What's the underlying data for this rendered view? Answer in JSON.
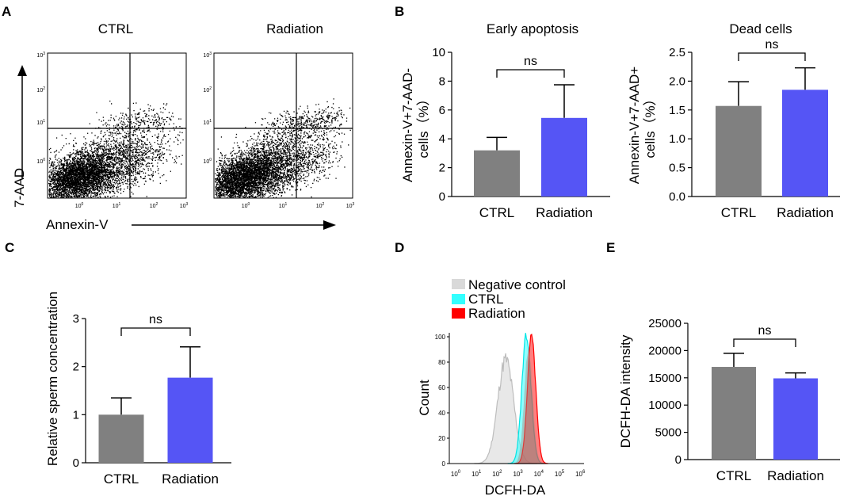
{
  "panels": {
    "A": "A",
    "B": "B",
    "C": "C",
    "D": "D",
    "E": "E"
  },
  "colors": {
    "ctrl": "#808080",
    "radiation": "#5555f5",
    "negative_control": "#d9d9d9",
    "ctrl_hist": "#33ffff",
    "radiation_hist": "#ff0000"
  },
  "chart_data": [
    {
      "panel": "A",
      "type": "scatter",
      "title_left": "CTRL",
      "title_right": "Radiation",
      "xlabel": "Annexin-V",
      "ylabel": "7-AAD",
      "x_ticks": [
        "10",
        "10",
        "10",
        "10"
      ],
      "x_tick_exponents": [
        "0",
        "1",
        "2",
        "3"
      ],
      "y_ticks": [
        "10",
        "10",
        "10",
        "10"
      ],
      "y_tick_exponents": [
        "0",
        "1",
        "2",
        "3"
      ],
      "quadrant_gate": {
        "x": 20,
        "y": 8
      }
    },
    {
      "panel": "B-left",
      "type": "bar",
      "title": "Early apoptosis",
      "ylabel_line1": "Annexin-V+7-AAD-",
      "ylabel_line2": "cells（%）",
      "categories": [
        "CTRL",
        "Radiation"
      ],
      "values": [
        3.2,
        5.45
      ],
      "errors": [
        0.9,
        2.3
      ],
      "ylim": [
        0,
        10
      ],
      "yticks": [
        "0",
        "2",
        "4",
        "6",
        "8",
        "10"
      ],
      "significance": "ns"
    },
    {
      "panel": "B-right",
      "type": "bar",
      "title": "Dead cells",
      "ylabel_line1": "Annexin-V+7-AAD+",
      "ylabel_line2": "cells（%）",
      "categories": [
        "CTRL",
        "Radiation"
      ],
      "values": [
        1.57,
        1.85
      ],
      "errors": [
        0.42,
        0.38
      ],
      "ylim": [
        0,
        2.5
      ],
      "yticks": [
        "0.0",
        "0.5",
        "1.0",
        "1.5",
        "2.0",
        "2.5"
      ],
      "significance": "ns"
    },
    {
      "panel": "C",
      "type": "bar",
      "title": "",
      "ylabel": "Relative sperm concentration",
      "categories": [
        "CTRL",
        "Radiation"
      ],
      "values": [
        1.0,
        1.77
      ],
      "errors": [
        0.35,
        0.64
      ],
      "ylim": [
        0,
        3
      ],
      "yticks": [
        "0",
        "1",
        "2",
        "3"
      ],
      "significance": "ns"
    },
    {
      "panel": "D",
      "type": "area",
      "xlabel": "DCFH-DA",
      "ylabel": "Count",
      "legend": [
        "Negative control",
        "CTRL",
        "Radiation"
      ],
      "y_ticks": [
        "0",
        "20",
        "40",
        "60",
        "80",
        "100"
      ],
      "x_ticks": [
        "10",
        "10",
        "10",
        "10",
        "10",
        "10",
        "10"
      ],
      "x_tick_exponents": [
        "0",
        "1",
        "2",
        "3",
        "4",
        "5",
        "6"
      ],
      "series": [
        {
          "name": "Negative control",
          "peak_log": 2.6,
          "peak_count": 82
        },
        {
          "name": "CTRL",
          "peak_log": 3.6,
          "peak_count": 100
        },
        {
          "name": "Radiation",
          "peak_log": 3.85,
          "peak_count": 100
        }
      ]
    },
    {
      "panel": "E",
      "type": "bar",
      "title": "",
      "ylabel": "DCFH-DA intensity",
      "categories": [
        "CTRL",
        "Radiation"
      ],
      "values": [
        17000,
        14900
      ],
      "errors": [
        2500,
        1000
      ],
      "ylim": [
        0,
        25000
      ],
      "yticks": [
        "0",
        "5000",
        "10000",
        "15000",
        "20000",
        "25000"
      ],
      "significance": "ns"
    }
  ]
}
